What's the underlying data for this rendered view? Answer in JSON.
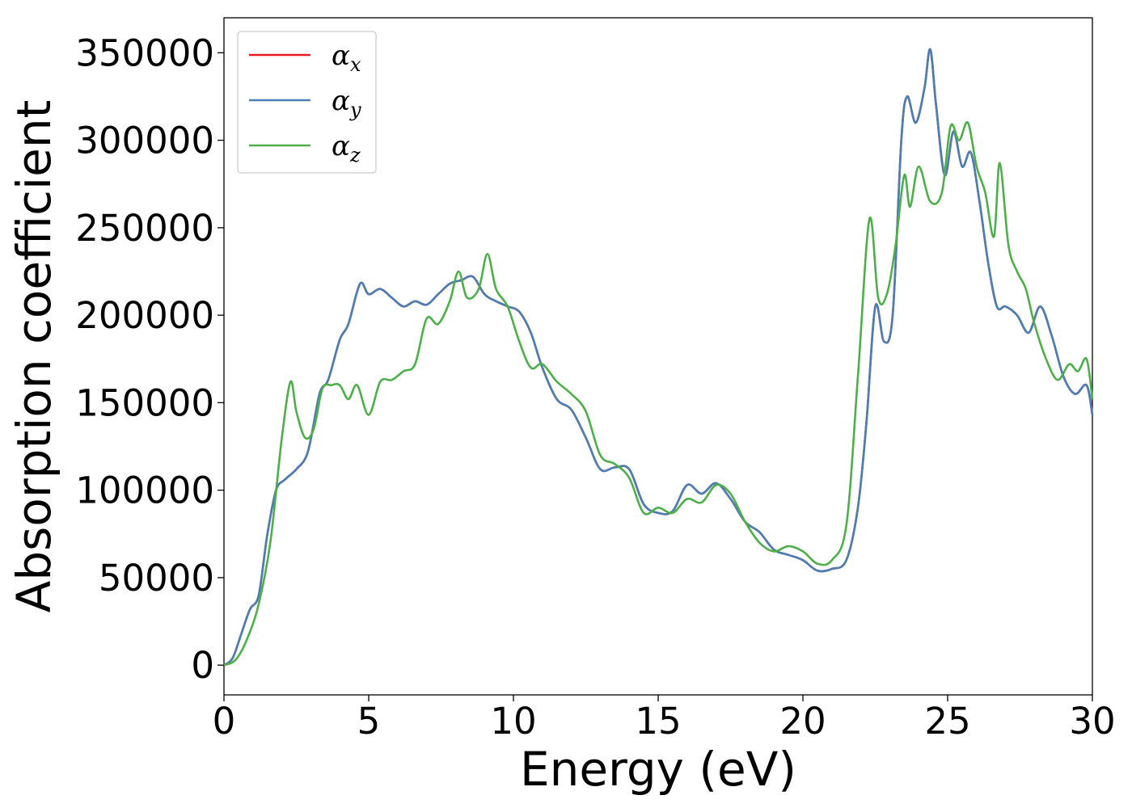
{
  "chart_data": {
    "type": "line",
    "title": "",
    "xlabel": "Energy (eV)",
    "ylabel": "Absorption coefficient",
    "xlim": [
      0,
      30
    ],
    "ylim": [
      -17000,
      370000
    ],
    "xticks": [
      0,
      5,
      10,
      15,
      20,
      25,
      30
    ],
    "xtick_labels": [
      "0",
      "5",
      "10",
      "15",
      "20",
      "25",
      "30"
    ],
    "yticks": [
      0,
      50000,
      100000,
      150000,
      200000,
      250000,
      300000,
      350000
    ],
    "ytick_labels": [
      "0",
      "50000",
      "100000",
      "150000",
      "200000",
      "250000",
      "300000",
      "350000"
    ],
    "grid": false,
    "legend_position": "top-left",
    "series": [
      {
        "name": "α",
        "subscript": "x",
        "color": "#e41a1c",
        "x": [
          0,
          0.3,
          0.6,
          0.9,
          1.2,
          1.5,
          1.8,
          2.1,
          2.5,
          2.9,
          3.3,
          3.6,
          4.0,
          4.3,
          4.7,
          5.0,
          5.4,
          5.8,
          6.2,
          6.6,
          7.0,
          7.4,
          7.8,
          8.2,
          8.6,
          9.0,
          9.4,
          9.8,
          10.2,
          10.6,
          11.0,
          11.5,
          12.0,
          12.5,
          13.0,
          13.5,
          14.0,
          14.5,
          15.0,
          15.5,
          16.0,
          16.5,
          17.0,
          17.5,
          18.0,
          18.5,
          19.0,
          19.5,
          20.0,
          20.5,
          21.0,
          21.5,
          21.9,
          22.2,
          22.5,
          22.8,
          23.1,
          23.4,
          23.6,
          23.9,
          24.2,
          24.4,
          24.6,
          24.9,
          25.2,
          25.5,
          25.8,
          26.1,
          26.4,
          26.7,
          27.0,
          27.4,
          27.8,
          28.2,
          28.6,
          29.0,
          29.4,
          29.8,
          30.0
        ],
        "values": [
          0,
          4000,
          18000,
          32000,
          40000,
          75000,
          100000,
          106000,
          112000,
          122000,
          155000,
          163000,
          186000,
          195000,
          218000,
          212000,
          215000,
          210000,
          205000,
          208000,
          206000,
          212000,
          218000,
          220000,
          222000,
          212000,
          208000,
          205000,
          202000,
          190000,
          170000,
          152000,
          146000,
          130000,
          112000,
          113000,
          112000,
          92000,
          87000,
          88000,
          103000,
          98000,
          104000,
          95000,
          82000,
          76000,
          66000,
          63000,
          60000,
          54000,
          55000,
          60000,
          90000,
          140000,
          205000,
          185000,
          200000,
          300000,
          325000,
          310000,
          330000,
          352000,
          320000,
          280000,
          305000,
          285000,
          293000,
          265000,
          230000,
          205000,
          205000,
          200000,
          190000,
          205000,
          188000,
          165000,
          155000,
          160000,
          143000
        ]
      },
      {
        "name": "α",
        "subscript": "y",
        "color": "#4a7fb5",
        "x": [
          0,
          0.3,
          0.6,
          0.9,
          1.2,
          1.5,
          1.8,
          2.1,
          2.5,
          2.9,
          3.3,
          3.6,
          4.0,
          4.3,
          4.7,
          5.0,
          5.4,
          5.8,
          6.2,
          6.6,
          7.0,
          7.4,
          7.8,
          8.2,
          8.6,
          9.0,
          9.4,
          9.8,
          10.2,
          10.6,
          11.0,
          11.5,
          12.0,
          12.5,
          13.0,
          13.5,
          14.0,
          14.5,
          15.0,
          15.5,
          16.0,
          16.5,
          17.0,
          17.5,
          18.0,
          18.5,
          19.0,
          19.5,
          20.0,
          20.5,
          21.0,
          21.5,
          21.9,
          22.2,
          22.5,
          22.8,
          23.1,
          23.4,
          23.6,
          23.9,
          24.2,
          24.4,
          24.6,
          24.9,
          25.2,
          25.5,
          25.8,
          26.1,
          26.4,
          26.7,
          27.0,
          27.4,
          27.8,
          28.2,
          28.6,
          29.0,
          29.4,
          29.8,
          30.0
        ],
        "values": [
          0,
          4000,
          18000,
          32000,
          40000,
          75000,
          100000,
          106000,
          112000,
          122000,
          155000,
          163000,
          186000,
          195000,
          218000,
          212000,
          215000,
          210000,
          205000,
          208000,
          206000,
          212000,
          218000,
          220000,
          222000,
          212000,
          208000,
          205000,
          202000,
          190000,
          170000,
          152000,
          146000,
          130000,
          112000,
          113000,
          112000,
          92000,
          87000,
          88000,
          103000,
          98000,
          104000,
          95000,
          82000,
          76000,
          66000,
          63000,
          60000,
          54000,
          55000,
          60000,
          90000,
          140000,
          205000,
          185000,
          200000,
          300000,
          325000,
          310000,
          330000,
          352000,
          320000,
          280000,
          305000,
          285000,
          293000,
          265000,
          230000,
          205000,
          205000,
          200000,
          190000,
          205000,
          188000,
          165000,
          155000,
          160000,
          143000
        ]
      },
      {
        "name": "α",
        "subscript": "z",
        "color": "#4daf4a",
        "x": [
          0,
          0.4,
          0.8,
          1.2,
          1.6,
          2.0,
          2.3,
          2.5,
          2.8,
          3.1,
          3.4,
          3.7,
          4.0,
          4.3,
          4.6,
          5.0,
          5.4,
          5.8,
          6.2,
          6.6,
          7.0,
          7.4,
          7.8,
          8.1,
          8.4,
          8.8,
          9.1,
          9.4,
          9.8,
          10.2,
          10.6,
          11.0,
          11.5,
          12.0,
          12.5,
          13.0,
          13.5,
          14.0,
          14.5,
          15.0,
          15.5,
          16.0,
          16.5,
          17.0,
          17.5,
          18.0,
          18.5,
          19.0,
          19.5,
          20.0,
          20.5,
          21.0,
          21.5,
          21.9,
          22.3,
          22.6,
          22.9,
          23.2,
          23.5,
          23.7,
          24.0,
          24.4,
          24.8,
          25.1,
          25.4,
          25.7,
          26.0,
          26.3,
          26.6,
          26.8,
          27.1,
          27.4,
          27.7,
          28.0,
          28.4,
          28.8,
          29.2,
          29.5,
          29.8,
          30.0
        ],
        "values": [
          0,
          3000,
          15000,
          35000,
          70000,
          130000,
          162000,
          145000,
          130000,
          135000,
          158000,
          160000,
          160000,
          152000,
          160000,
          143000,
          162000,
          163000,
          168000,
          172000,
          198000,
          195000,
          208000,
          225000,
          210000,
          215000,
          235000,
          215000,
          205000,
          185000,
          170000,
          172000,
          162000,
          155000,
          145000,
          120000,
          115000,
          107000,
          87000,
          90000,
          87000,
          95000,
          93000,
          103000,
          98000,
          82000,
          70000,
          65000,
          68000,
          65000,
          58000,
          60000,
          80000,
          165000,
          255000,
          210000,
          212000,
          240000,
          280000,
          262000,
          285000,
          265000,
          270000,
          308000,
          300000,
          310000,
          285000,
          270000,
          245000,
          287000,
          240000,
          225000,
          215000,
          195000,
          175000,
          163000,
          172000,
          168000,
          175000,
          152000
        ]
      }
    ]
  }
}
